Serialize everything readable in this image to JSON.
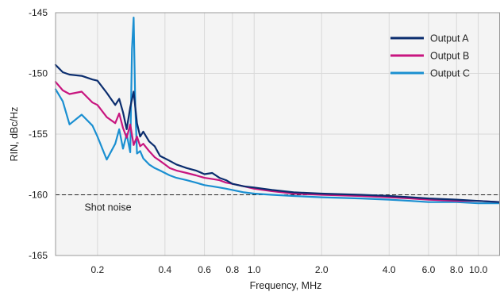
{
  "chart_data": {
    "type": "line",
    "title": "",
    "xlabel": "Frequency, MHz",
    "ylabel": "RIN, dBc/Hz",
    "xscale": "log",
    "xlim": [
      0.13,
      12.5
    ],
    "ylim": [
      -165,
      -145
    ],
    "x_ticks": [
      0.2,
      0.4,
      0.6,
      0.8,
      1.0,
      2.0,
      4.0,
      6.0,
      8.0,
      10.0
    ],
    "x_tick_labels": [
      "0.2",
      "0.4",
      "0.6",
      "0.8",
      "1.0",
      "2.0",
      "4.0",
      "6.0",
      "8.0",
      "10.0"
    ],
    "y_ticks": [
      -165,
      -160,
      -155,
      -150,
      -145
    ],
    "y_tick_labels": [
      "-165",
      "-160",
      "-155",
      "-150",
      "-145"
    ],
    "grid": true,
    "legend_position": "top-right",
    "reference_line": {
      "y": -160,
      "label": "Shot noise",
      "style": "dashed"
    },
    "series": [
      {
        "name": "Output A",
        "color": "#0b2d6e",
        "x": [
          0.13,
          0.14,
          0.15,
          0.17,
          0.19,
          0.2,
          0.22,
          0.24,
          0.25,
          0.26,
          0.27,
          0.28,
          0.29,
          0.3,
          0.31,
          0.32,
          0.34,
          0.36,
          0.38,
          0.4,
          0.42,
          0.45,
          0.5,
          0.55,
          0.6,
          0.65,
          0.7,
          0.75,
          0.8,
          0.9,
          1.0,
          1.2,
          1.5,
          2.0,
          3.0,
          4.0,
          5.0,
          6.0,
          8.0,
          10.0,
          12.5
        ],
        "y": [
          -149.3,
          -149.9,
          -150.1,
          -150.2,
          -150.5,
          -150.6,
          -151.6,
          -152.6,
          -152.1,
          -153.2,
          -154.6,
          -152.8,
          -151.5,
          -154.1,
          -155.2,
          -154.8,
          -155.6,
          -156.0,
          -156.8,
          -157.0,
          -157.2,
          -157.5,
          -157.8,
          -158.0,
          -158.3,
          -158.2,
          -158.6,
          -158.8,
          -159.1,
          -159.3,
          -159.4,
          -159.6,
          -159.8,
          -159.9,
          -160.0,
          -160.1,
          -160.2,
          -160.3,
          -160.4,
          -160.5,
          -160.6
        ]
      },
      {
        "name": "Output B",
        "color": "#c8157f",
        "x": [
          0.13,
          0.14,
          0.15,
          0.17,
          0.19,
          0.2,
          0.22,
          0.24,
          0.25,
          0.26,
          0.27,
          0.28,
          0.29,
          0.3,
          0.31,
          0.32,
          0.34,
          0.36,
          0.38,
          0.4,
          0.42,
          0.45,
          0.5,
          0.55,
          0.6,
          0.65,
          0.7,
          0.75,
          0.8,
          0.9,
          1.0,
          1.2,
          1.5,
          2.0,
          3.0,
          4.0,
          5.0,
          6.0,
          8.0,
          10.0,
          12.5
        ],
        "y": [
          -150.7,
          -151.4,
          -151.7,
          -151.5,
          -152.4,
          -152.6,
          -153.6,
          -154.1,
          -153.3,
          -154.5,
          -155.3,
          -154.2,
          -155.9,
          -155.2,
          -156.0,
          -155.8,
          -156.4,
          -156.9,
          -157.2,
          -157.5,
          -157.8,
          -158.0,
          -158.2,
          -158.4,
          -158.6,
          -158.7,
          -158.8,
          -159.0,
          -159.1,
          -159.3,
          -159.5,
          -159.7,
          -159.9,
          -160.0,
          -160.1,
          -160.2,
          -160.3,
          -160.4,
          -160.5,
          -160.5,
          -160.6
        ]
      },
      {
        "name": "Output C",
        "color": "#1a8fd1",
        "x": [
          0.13,
          0.14,
          0.15,
          0.17,
          0.19,
          0.2,
          0.22,
          0.24,
          0.25,
          0.26,
          0.27,
          0.28,
          0.285,
          0.29,
          0.295,
          0.3,
          0.31,
          0.32,
          0.34,
          0.36,
          0.38,
          0.4,
          0.42,
          0.45,
          0.5,
          0.55,
          0.6,
          0.65,
          0.7,
          0.75,
          0.8,
          0.9,
          1.0,
          1.2,
          1.5,
          2.0,
          3.0,
          4.0,
          5.0,
          6.0,
          8.0,
          10.0,
          12.5
        ],
        "y": [
          -151.3,
          -152.3,
          -154.2,
          -153.4,
          -154.3,
          -155.2,
          -157.1,
          -155.8,
          -154.6,
          -156.2,
          -155.0,
          -156.5,
          -148.0,
          -145.4,
          -152.8,
          -156.6,
          -156.4,
          -157.0,
          -157.5,
          -157.8,
          -158.0,
          -158.2,
          -158.4,
          -158.6,
          -158.8,
          -159.0,
          -159.2,
          -159.3,
          -159.4,
          -159.5,
          -159.6,
          -159.8,
          -159.9,
          -160.0,
          -160.1,
          -160.2,
          -160.3,
          -160.4,
          -160.5,
          -160.6,
          -160.6,
          -160.7,
          -160.7
        ]
      }
    ]
  }
}
